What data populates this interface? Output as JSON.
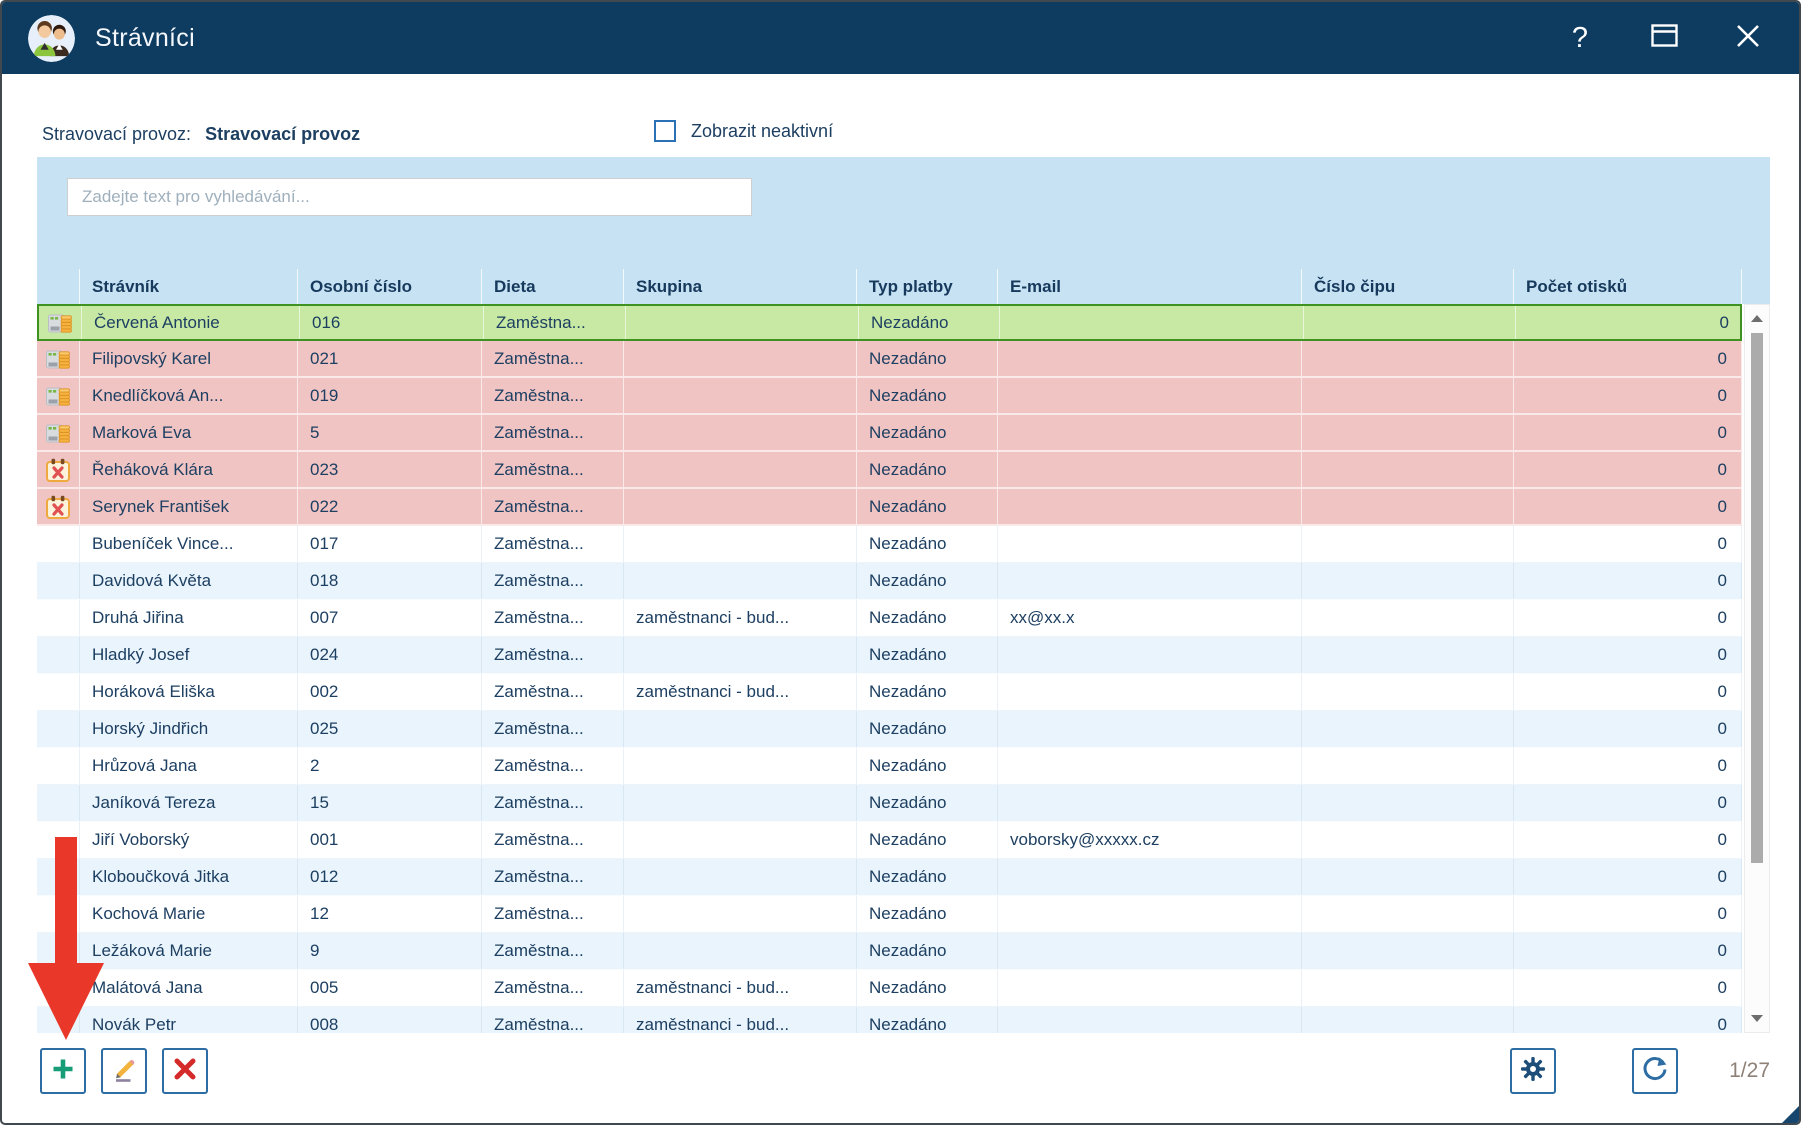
{
  "titlebar": {
    "title": "Strávníci",
    "help_glyph": "?",
    "icons": {
      "app": "diners-avatar-icon",
      "help": "help-icon",
      "maximize": "maximize-icon",
      "close": "close-icon"
    }
  },
  "filters": {
    "provider_label": "Stravovací provoz:",
    "provider_value": "Stravovací provoz",
    "show_inactive_label": "Zobrazit neaktivní",
    "show_inactive_checked": false
  },
  "search": {
    "placeholder": "Zadejte text pro vyhledávání..."
  },
  "table": {
    "columns": [
      "Strávník",
      "Osobní číslo",
      "Dieta",
      "Skupina",
      "Typ platby",
      "E-mail",
      "Číslo čipu",
      "Počet otisků"
    ],
    "rows": [
      {
        "icon": "money-icon",
        "state": "selected",
        "cells": [
          "Červená Antonie",
          "016",
          "Zaměstna...",
          "",
          "Nezadáno",
          "",
          "",
          "0"
        ]
      },
      {
        "icon": "money-icon",
        "state": "alert",
        "cells": [
          "Filipovský Karel",
          "021",
          "Zaměstna...",
          "",
          "Nezadáno",
          "",
          "",
          "0"
        ]
      },
      {
        "icon": "money-icon",
        "state": "alert",
        "cells": [
          "Knedlíčková An...",
          "019",
          "Zaměstna...",
          "",
          "Nezadáno",
          "",
          "",
          "0"
        ]
      },
      {
        "icon": "money-icon",
        "state": "alert",
        "cells": [
          "Marková Eva",
          "5",
          "Zaměstna...",
          "",
          "Nezadáno",
          "",
          "",
          "0"
        ]
      },
      {
        "icon": "calendar-x-icon",
        "state": "alert",
        "cells": [
          "Řeháková Klára",
          "023",
          "Zaměstna...",
          "",
          "Nezadáno",
          "",
          "",
          "0"
        ]
      },
      {
        "icon": "calendar-x-icon",
        "state": "alert",
        "cells": [
          "Serynek František",
          "022",
          "Zaměstna...",
          "",
          "Nezadáno",
          "",
          "",
          "0"
        ]
      },
      {
        "icon": "",
        "state": "normal",
        "cells": [
          "Bubeníček Vince...",
          "017",
          "Zaměstna...",
          "",
          "Nezadáno",
          "",
          "",
          "0"
        ]
      },
      {
        "icon": "",
        "state": "normal",
        "cells": [
          "Davidová Květa",
          "018",
          "Zaměstna...",
          "",
          "Nezadáno",
          "",
          "",
          "0"
        ]
      },
      {
        "icon": "",
        "state": "normal",
        "cells": [
          "Druhá Jiřina",
          "007",
          "Zaměstna...",
          "zaměstnanci - bud...",
          "Nezadáno",
          "xx@xx.x",
          "",
          "0"
        ]
      },
      {
        "icon": "",
        "state": "normal",
        "cells": [
          "Hladký Josef",
          "024",
          "Zaměstna...",
          "",
          "Nezadáno",
          "",
          "",
          "0"
        ]
      },
      {
        "icon": "",
        "state": "normal",
        "cells": [
          "Horáková Eliška",
          "002",
          "Zaměstna...",
          "zaměstnanci - bud...",
          "Nezadáno",
          "",
          "",
          "0"
        ]
      },
      {
        "icon": "",
        "state": "normal",
        "cells": [
          "Horský Jindřich",
          "025",
          "Zaměstna...",
          "",
          "Nezadáno",
          "",
          "",
          "0"
        ]
      },
      {
        "icon": "",
        "state": "normal",
        "cells": [
          "Hrůzová Jana",
          "2",
          "Zaměstna...",
          "",
          "Nezadáno",
          "",
          "",
          "0"
        ]
      },
      {
        "icon": "",
        "state": "normal",
        "cells": [
          "Janíková Tereza",
          "15",
          "Zaměstna...",
          "",
          "Nezadáno",
          "",
          "",
          "0"
        ]
      },
      {
        "icon": "",
        "state": "normal",
        "cells": [
          "Jiří Voborský",
          "001",
          "Zaměstna...",
          "",
          "Nezadáno",
          "voborsky@xxxxx.cz",
          "",
          "0"
        ]
      },
      {
        "icon": "",
        "state": "normal",
        "cells": [
          "Kloboučková Jitka",
          "012",
          "Zaměstna...",
          "",
          "Nezadáno",
          "",
          "",
          "0"
        ]
      },
      {
        "icon": "",
        "state": "normal",
        "cells": [
          "Kochová Marie",
          "12",
          "Zaměstna...",
          "",
          "Nezadáno",
          "",
          "",
          "0"
        ]
      },
      {
        "icon": "",
        "state": "normal",
        "cells": [
          "Ležáková Marie",
          "9",
          "Zaměstna...",
          "",
          "Nezadáno",
          "",
          "",
          "0"
        ]
      },
      {
        "icon": "",
        "state": "normal",
        "cells": [
          "Malátová Jana",
          "005",
          "Zaměstna...",
          "zaměstnanci - bud...",
          "Nezadáno",
          "",
          "",
          "0"
        ]
      },
      {
        "icon": "",
        "state": "normal",
        "cells": [
          "Novák Petr",
          "008",
          "Zaměstna...",
          "zaměstnanci - bud...",
          "Nezadáno",
          "",
          "",
          "0"
        ]
      }
    ]
  },
  "footer_toolbar": {
    "button_icons": [
      "plus-icon",
      "pencil-icon",
      "delete-x-icon",
      "gear-icon",
      "refresh-icon"
    ]
  },
  "pager": {
    "position_indicator": "1/27"
  },
  "annotation": {
    "shape": "red-arrow",
    "color": "#e9372a",
    "points_at": "add-button"
  },
  "colors": {
    "titlebar": "#0e3b60",
    "panel_blue": "#c7e2f3",
    "selected_row_bg": "#c8e9a4",
    "selected_row_border": "#3f9222",
    "alert_row_bg": "#f1c4c4",
    "alt_row_bg": "#e9f4fc",
    "text": "#1d3f61",
    "accent_border": "#2e6da4",
    "add_green": "#169c76",
    "edit_gold": "#f2b43e",
    "delete_red": "#d42a2a",
    "arrow_red": "#e9372a"
  }
}
